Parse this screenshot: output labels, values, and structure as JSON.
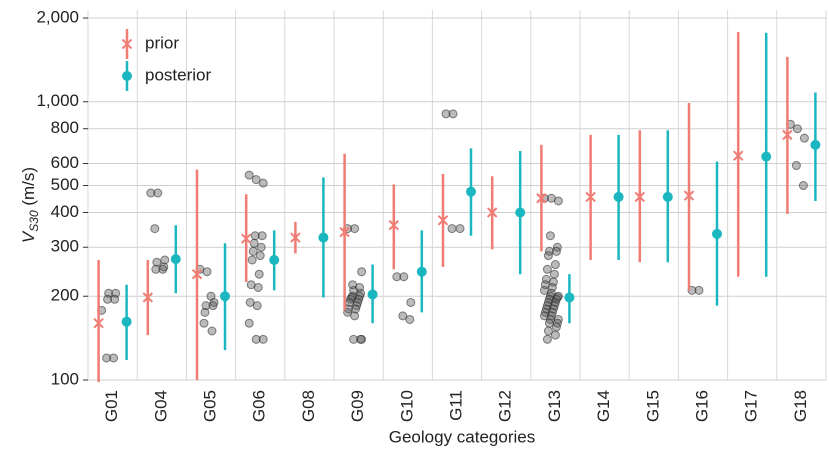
{
  "chart_data": {
    "type": "interval",
    "x_label": "Geology categories",
    "y_label": {
      "main": "V",
      "sub": "S30",
      "unit": " (m/s)"
    },
    "log_scale": true,
    "grid": true,
    "legend_position": "upper left",
    "ylim": [
      100,
      2000
    ],
    "yticks": [
      100,
      200,
      300,
      400,
      500,
      600,
      800,
      {
        "value": 1000,
        "label": "1,000"
      },
      {
        "value": 2000,
        "label": "2,000"
      }
    ],
    "categories": [
      "G01",
      "G04",
      "G05",
      "G06",
      "G08",
      "G09",
      "G10",
      "G11",
      "G12",
      "G13",
      "G14",
      "G15",
      "G16",
      "G17",
      "G18"
    ],
    "series": [
      {
        "name": "prior",
        "color": "#f07c74",
        "values": [
          160,
          198,
          240,
          322,
          325,
          340,
          360,
          375,
          400,
          450,
          455,
          455,
          460,
          640,
          760
        ],
        "low": [
          96,
          145,
          100,
          225,
          285,
          178,
          250,
          255,
          295,
          290,
          270,
          265,
          210,
          235,
          395
        ],
        "high": [
          270,
          270,
          570,
          465,
          370,
          650,
          505,
          550,
          540,
          700,
          760,
          790,
          990,
          1780,
          1450
        ]
      },
      {
        "name": "posterior",
        "color": "#1bb7c0",
        "values": [
          162,
          272,
          200,
          270,
          325,
          203,
          245,
          475,
          400,
          198,
          455,
          455,
          335,
          635,
          700
        ],
        "low": [
          118,
          205,
          128,
          210,
          198,
          160,
          175,
          330,
          240,
          160,
          270,
          265,
          185,
          235,
          440
        ],
        "high": [
          220,
          360,
          310,
          345,
          535,
          260,
          345,
          680,
          665,
          240,
          760,
          790,
          610,
          1770,
          1080
        ]
      }
    ],
    "observations": [
      [
        178,
        205,
        205,
        195,
        195,
        120,
        120
      ],
      [
        470,
        470,
        270,
        265,
        255,
        250,
        250,
        350
      ],
      [
        250,
        245,
        190,
        185,
        185,
        175,
        150,
        160,
        200
      ],
      [
        545,
        525,
        510,
        330,
        330,
        310,
        300,
        290,
        280,
        270,
        240,
        220,
        215,
        190,
        185,
        160,
        140,
        140
      ],
      [],
      [
        350,
        350,
        245,
        210,
        205,
        200,
        200,
        198,
        195,
        195,
        190,
        190,
        185,
        180,
        180,
        175,
        170,
        140,
        140,
        140,
        220,
        215
      ],
      [
        235,
        235,
        190,
        170,
        165
      ],
      [
        905,
        905,
        350,
        350
      ],
      [],
      [
        450,
        450,
        440,
        330,
        300,
        290,
        290,
        280,
        260,
        250,
        240,
        230,
        225,
        220,
        215,
        210,
        205,
        200,
        200,
        198,
        195,
        195,
        190,
        190,
        185,
        185,
        180,
        180,
        175,
        175,
        170,
        170,
        165,
        165,
        160,
        160,
        155,
        150,
        145,
        140
      ],
      [],
      [],
      [
        210,
        210
      ],
      [],
      [
        830,
        800,
        740,
        590,
        500
      ]
    ]
  }
}
